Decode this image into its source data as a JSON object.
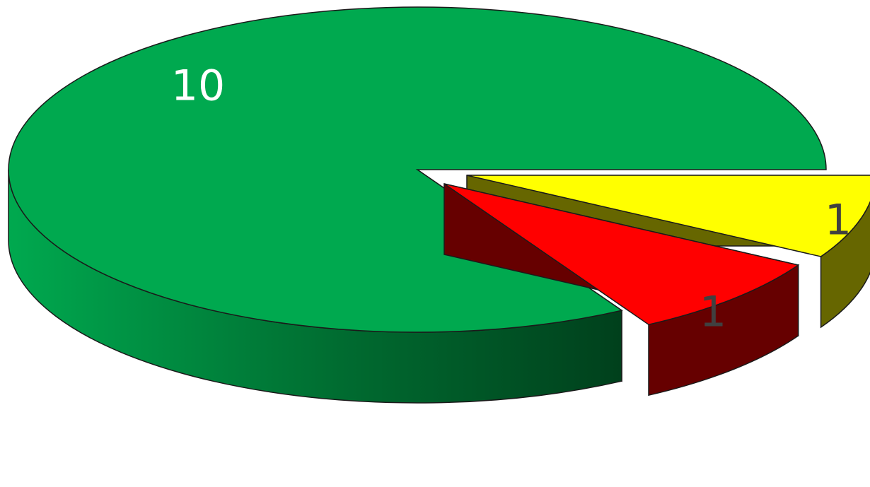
{
  "chart_data": {
    "type": "pie",
    "style": "3d-exploded",
    "title": "",
    "slices": [
      {
        "value": 10,
        "label": "10",
        "color": "#00A94F",
        "side_color": "#005A2A",
        "label_color": "#FFFFFF"
      },
      {
        "value": 1,
        "label": "1",
        "color": "#FF0000",
        "side_color": "#660000",
        "label_color": "#404040"
      },
      {
        "value": 1,
        "label": "1",
        "color": "#FFFF00",
        "side_color": "#666600",
        "label_color": "#404040"
      }
    ],
    "legend": "none"
  }
}
